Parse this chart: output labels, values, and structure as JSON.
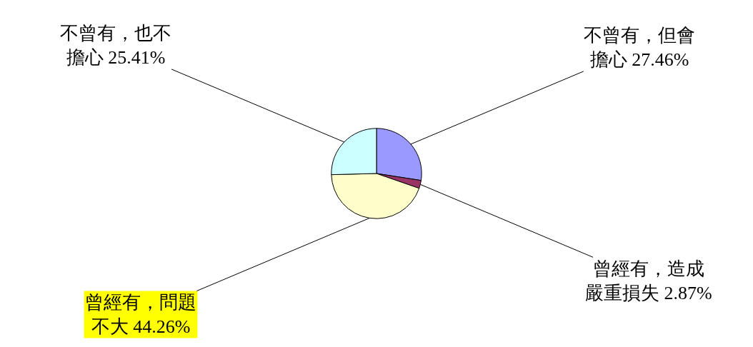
{
  "chart_data": {
    "type": "pie",
    "categories": [
      "不曾有，但會擔心",
      "曾經有，造成嚴重損失",
      "曾經有，問題不大",
      "不曾有，也不擔心"
    ],
    "values": [
      27.46,
      2.87,
      44.26,
      25.41
    ],
    "value_labels": [
      "27.46%",
      "2.87%",
      "44.26%",
      "25.41%"
    ],
    "colors": [
      "#9999ff",
      "#993366",
      "#ffffcc",
      "#ccffff"
    ],
    "legend": false
  }
}
